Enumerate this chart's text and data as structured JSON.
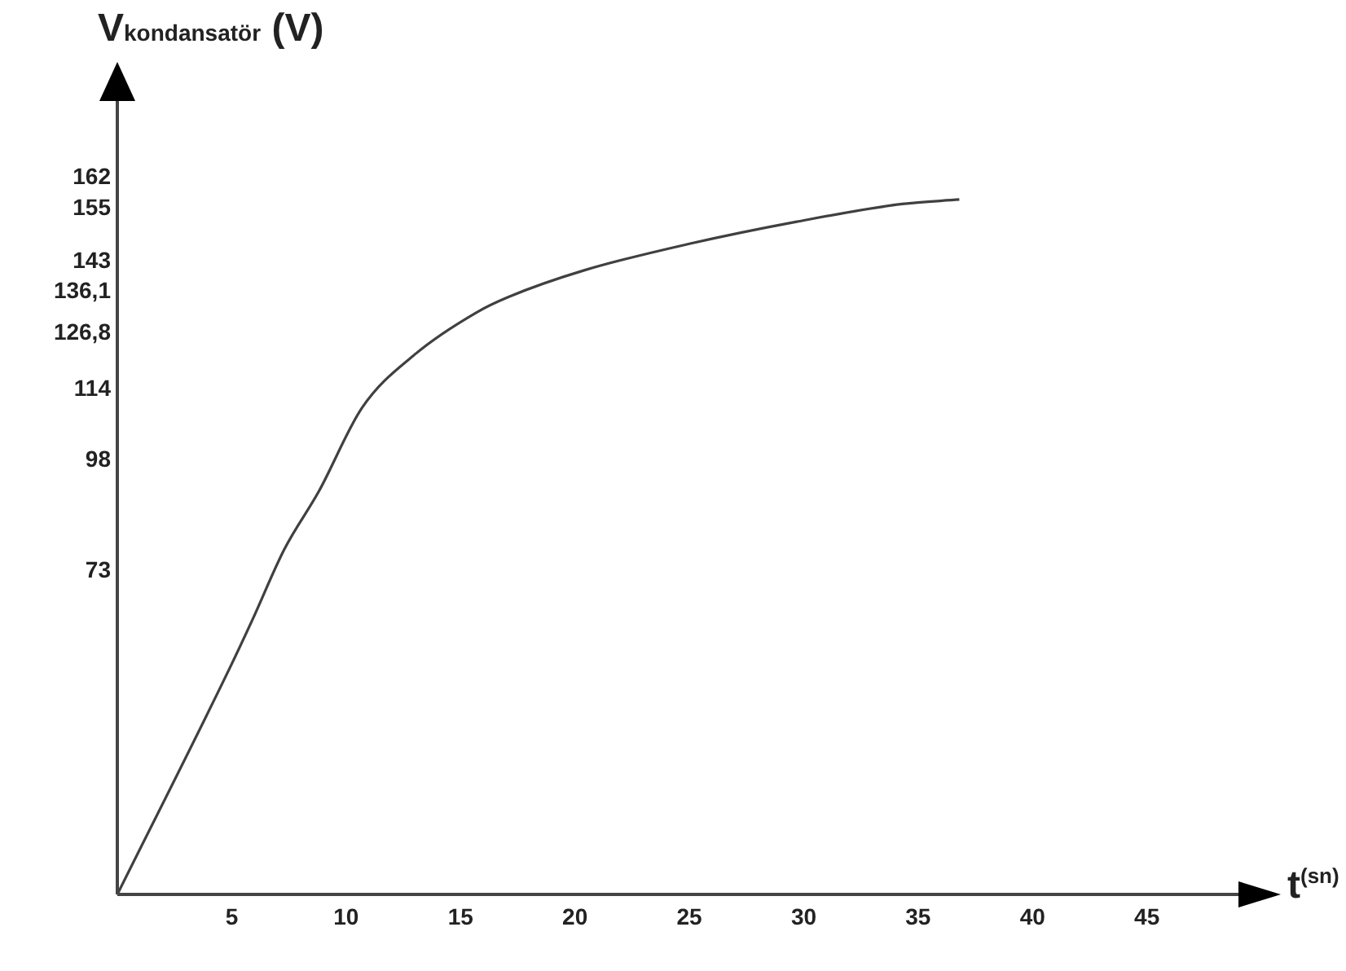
{
  "chart_data": {
    "type": "line",
    "xlabel": "t$^{(sn)}$",
    "ylabel": "V$_{kondansatör}$ (V)",
    "x": [
      0,
      4.9,
      5.9,
      7.3,
      8.8,
      10.7,
      13.0,
      15.7,
      17.1,
      20.4,
      25,
      29.7,
      34.3,
      36.8
    ],
    "series": [
      {
        "color": "#404040",
        "values": [
          0,
          51,
          62,
          78,
          91,
          110,
          122,
          131.5,
          135,
          141,
          147,
          152,
          156,
          157
        ]
      }
    ],
    "xlim": [
      0,
      49
    ],
    "ylim": [
      0,
      180
    ],
    "xticks": [
      5,
      10,
      15,
      20,
      25,
      30,
      35,
      40,
      45
    ],
    "yticks": [
      73,
      98,
      114,
      {
        "value": 126.8,
        "label": "126,8"
      },
      {
        "value": 136.1,
        "label": "136,1"
      },
      143,
      155,
      162
    ],
    "grid": false,
    "marker": "none",
    "line_style": "solid"
  }
}
